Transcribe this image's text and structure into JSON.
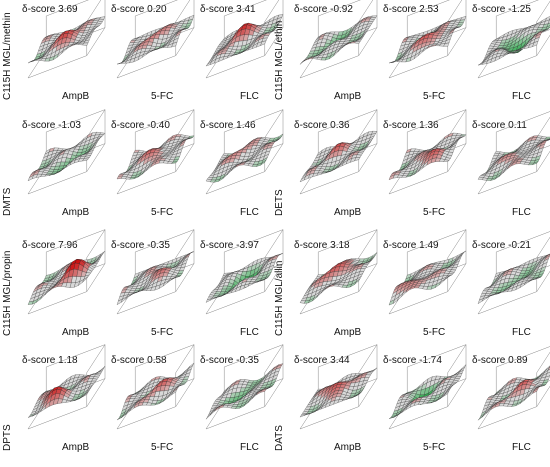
{
  "figure": {
    "groups": [
      {
        "rows": [
          {
            "label": "C115H MGL/methin",
            "panels": [
              {
                "drug": "AmpB",
                "score_label": "δ-score",
                "score": "3.69",
                "peak": 0.55
              },
              {
                "drug": "5-FC",
                "score_label": "δ-score",
                "score": "0.20",
                "peak": 0.35
              },
              {
                "drug": "FLC",
                "score_label": "δ-score",
                "score": "3.41",
                "peak": 0.6
              }
            ]
          },
          {
            "label": "DMTS",
            "panels": [
              {
                "drug": "AmpB",
                "score_label": "δ-score",
                "score": "-1.03",
                "peak": -0.3
              },
              {
                "drug": "5-FC",
                "score_label": "δ-score",
                "score": "-0.40",
                "peak": 0.4
              },
              {
                "drug": "FLC",
                "score_label": "δ-score",
                "score": "1.46",
                "peak": 0.3
              }
            ]
          },
          {
            "label": "C115H MGL/propin",
            "panels": [
              {
                "drug": "AmpB",
                "score_label": "δ-score",
                "score": "7.96",
                "peak": 0.8
              },
              {
                "drug": "5-FC",
                "score_label": "δ-score",
                "score": "-0.35",
                "peak": 0.3
              },
              {
                "drug": "FLC",
                "score_label": "δ-score",
                "score": "-3.97",
                "peak": -0.6
              }
            ]
          },
          {
            "label": "DPTS",
            "panels": [
              {
                "drug": "AmpB",
                "score_label": "δ-score",
                "score": "1.18",
                "peak": 0.6
              },
              {
                "drug": "5-FC",
                "score_label": "δ-score",
                "score": "0.58",
                "peak": 0.4
              },
              {
                "drug": "FLC",
                "score_label": "δ-score",
                "score": "-0.35",
                "peak": -0.4
              }
            ]
          }
        ]
      },
      {
        "rows": [
          {
            "label": "C115H MGL/ethin",
            "panels": [
              {
                "drug": "AmpB",
                "score_label": "δ-score",
                "score": "-0.92",
                "peak": -0.3
              },
              {
                "drug": "5-FC",
                "score_label": "δ-score",
                "score": "2.53",
                "peak": 0.55
              },
              {
                "drug": "FLC",
                "score_label": "δ-score",
                "score": "-1.25",
                "peak": -0.5
              }
            ]
          },
          {
            "label": "DETS",
            "panels": [
              {
                "drug": "AmpB",
                "score_label": "δ-score",
                "score": "0.36",
                "peak": 0.35
              },
              {
                "drug": "5-FC",
                "score_label": "δ-score",
                "score": "1.36",
                "peak": 0.45
              },
              {
                "drug": "FLC",
                "score_label": "δ-score",
                "score": "0.11",
                "peak": 0.3
              }
            ]
          },
          {
            "label": "C115H MGL/allin",
            "panels": [
              {
                "drug": "AmpB",
                "score_label": "δ-score",
                "score": "3.18",
                "peak": 0.6
              },
              {
                "drug": "5-FC",
                "score_label": "δ-score",
                "score": "1.49",
                "peak": 0.45
              },
              {
                "drug": "FLC",
                "score_label": "δ-score",
                "score": "-0.21",
                "peak": -0.3
              }
            ]
          },
          {
            "label": "DATS",
            "panels": [
              {
                "drug": "AmpB",
                "score_label": "δ-score",
                "score": "3.44",
                "peak": 0.6
              },
              {
                "drug": "5-FC",
                "score_label": "δ-score",
                "score": "-1.74",
                "peak": -0.5
              },
              {
                "drug": "FLC",
                "score_label": "δ-score",
                "score": "0.89",
                "peak": 0.35
              }
            ]
          }
        ]
      }
    ]
  },
  "chart_data": {
    "type": "surface",
    "colors": {
      "synergy": "#cc1111",
      "antagonism": "#22aa44",
      "neutral": "#d8d8d8",
      "mesh": "#222222"
    },
    "panels": [
      {
        "row": "C115H MGL/methin",
        "drug": "AmpB",
        "delta_score": 3.69
      },
      {
        "row": "C115H MGL/methin",
        "drug": "5-FC",
        "delta_score": 0.2
      },
      {
        "row": "C115H MGL/methin",
        "drug": "FLC",
        "delta_score": 3.41
      },
      {
        "row": "DMTS",
        "drug": "AmpB",
        "delta_score": -1.03
      },
      {
        "row": "DMTS",
        "drug": "5-FC",
        "delta_score": -0.4
      },
      {
        "row": "DMTS",
        "drug": "FLC",
        "delta_score": 1.46
      },
      {
        "row": "C115H MGL/propin",
        "drug": "AmpB",
        "delta_score": 7.96
      },
      {
        "row": "C115H MGL/propin",
        "drug": "5-FC",
        "delta_score": -0.35
      },
      {
        "row": "C115H MGL/propin",
        "drug": "FLC",
        "delta_score": -3.97
      },
      {
        "row": "DPTS",
        "drug": "AmpB",
        "delta_score": 1.18
      },
      {
        "row": "DPTS",
        "drug": "5-FC",
        "delta_score": 0.58
      },
      {
        "row": "DPTS",
        "drug": "FLC",
        "delta_score": -0.35
      },
      {
        "row": "C115H MGL/ethin",
        "drug": "AmpB",
        "delta_score": -0.92
      },
      {
        "row": "C115H MGL/ethin",
        "drug": "5-FC",
        "delta_score": 2.53
      },
      {
        "row": "C115H MGL/ethin",
        "drug": "FLC",
        "delta_score": -1.25
      },
      {
        "row": "DETS",
        "drug": "AmpB",
        "delta_score": 0.36
      },
      {
        "row": "DETS",
        "drug": "5-FC",
        "delta_score": 1.36
      },
      {
        "row": "DETS",
        "drug": "FLC",
        "delta_score": 0.11
      },
      {
        "row": "C115H MGL/allin",
        "drug": "AmpB",
        "delta_score": 3.18
      },
      {
        "row": "C115H MGL/allin",
        "drug": "5-FC",
        "delta_score": 1.49
      },
      {
        "row": "C115H MGL/allin",
        "drug": "FLC",
        "delta_score": -0.21
      },
      {
        "row": "DATS",
        "drug": "AmpB",
        "delta_score": 3.44
      },
      {
        "row": "DATS",
        "drug": "5-FC",
        "delta_score": -1.74
      },
      {
        "row": "DATS",
        "drug": "FLC",
        "delta_score": 0.89
      }
    ]
  }
}
